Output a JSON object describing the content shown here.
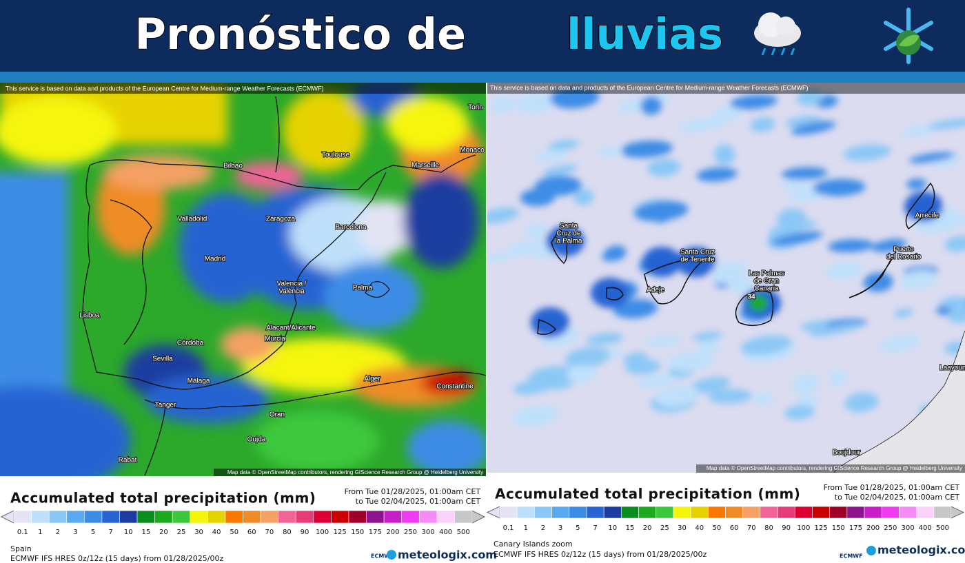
{
  "header": {
    "title_main": "Pronóstico de",
    "title_accent": "lluvias"
  },
  "scale": {
    "labels": [
      0.1,
      1,
      2,
      3,
      5,
      7,
      10,
      15,
      20,
      25,
      30,
      40,
      50,
      60,
      70,
      80,
      90,
      100,
      125,
      150,
      175,
      200,
      250,
      300,
      400,
      500
    ],
    "colors": [
      "#e4e4f4",
      "#bfe0fa",
      "#8cc8f5",
      "#5aaaf0",
      "#3c8ce6",
      "#2864d2",
      "#1e3ca0",
      "#0a8c1e",
      "#1eaa1e",
      "#3cc83c",
      "#f5f50a",
      "#e6d200",
      "#fa7800",
      "#f08c28",
      "#f5a064",
      "#f06496",
      "#e63c78",
      "#dc0032",
      "#c80000",
      "#a00028",
      "#8c148c",
      "#c81ec8",
      "#f03cf0",
      "#f58cf5",
      "#fad2fa",
      "#c8c8c8"
    ]
  },
  "panels": [
    {
      "attribution": "This service is based on data and products of the European Centre for Medium-range Weather Forecasts (ECMWF)",
      "map_credit": "Map data © OpenStreetMap contributors, rendering GIScience Research Group @ Heidelberg University",
      "places": [
        {
          "lines": [
            "Toulouse"
          ]
        },
        {
          "lines": [
            "Marseille"
          ]
        },
        {
          "lines": [
            "Monaco"
          ]
        },
        {
          "lines": [
            "Torin"
          ]
        },
        {
          "lines": [
            "Bilbao"
          ]
        },
        {
          "lines": [
            "Valladolid"
          ]
        },
        {
          "lines": [
            "Zaragoza"
          ]
        },
        {
          "lines": [
            "Barcelona"
          ]
        },
        {
          "lines": [
            "Madrid"
          ]
        },
        {
          "lines": [
            "Palma"
          ]
        },
        {
          "lines": [
            "Valencia /",
            "València"
          ]
        },
        {
          "lines": [
            "Lisboa"
          ]
        },
        {
          "lines": [
            "Alacant/Alicante"
          ]
        },
        {
          "lines": [
            "Murcia"
          ]
        },
        {
          "lines": [
            "Córdoba"
          ]
        },
        {
          "lines": [
            "Sevilla"
          ]
        },
        {
          "lines": [
            "Málaga"
          ]
        },
        {
          "lines": [
            "Alger"
          ]
        },
        {
          "lines": [
            "Constantine"
          ]
        },
        {
          "lines": [
            "Tanger"
          ]
        },
        {
          "lines": [
            "Oran"
          ]
        },
        {
          "lines": [
            "Oujda"
          ]
        },
        {
          "lines": [
            "Rabat"
          ]
        }
      ],
      "legend_title": "Accumulated total precipitation (mm)",
      "date_from": "From Tue 01/28/2025, 01:00am CET",
      "date_to": "to Tue 02/04/2025, 01:00am CET",
      "region": "Spain",
      "model": "ECMWF IFS HRES 0z/12z (15 days) from 01/28/2025/00z",
      "ecmwf": "ECMWF",
      "brand": "meteologix.com"
    },
    {
      "attribution": "This service is based on data and products of the European Centre for Medium-range Weather Forecasts (ECMWF)",
      "map_credit": "Map data © OpenStreetMap contributors, rendering GIScience Research Group @ Heidelberg University",
      "places": [
        {
          "lines": [
            "Santa",
            "Cruz de",
            "la Palma"
          ]
        },
        {
          "lines": [
            "Santa Cruz",
            "de Tenerife"
          ]
        },
        {
          "lines": [
            "Adeje"
          ]
        },
        {
          "lines": [
            "Las Palmas",
            "de Gran",
            "Canaria"
          ]
        },
        {
          "lines": [
            "34"
          ]
        },
        {
          "lines": [
            "Arrecife"
          ]
        },
        {
          "lines": [
            "Puerto",
            "del Rosario"
          ]
        },
        {
          "lines": [
            "Laayoune"
          ]
        },
        {
          "lines": [
            "Boujdour"
          ]
        }
      ],
      "legend_title": "Accumulated total precipitation (mm)",
      "date_from": "From Tue 01/28/2025, 01:00am CET",
      "date_to": "to Tue 02/04/2025, 01:00am CET",
      "region": "Canary Islands zoom",
      "model": "ECMWF IFS HRES 0z/12z (15 days) from 01/28/2025/00z",
      "ecmwf": "ECMWF",
      "brand": "meteologix.com"
    }
  ]
}
